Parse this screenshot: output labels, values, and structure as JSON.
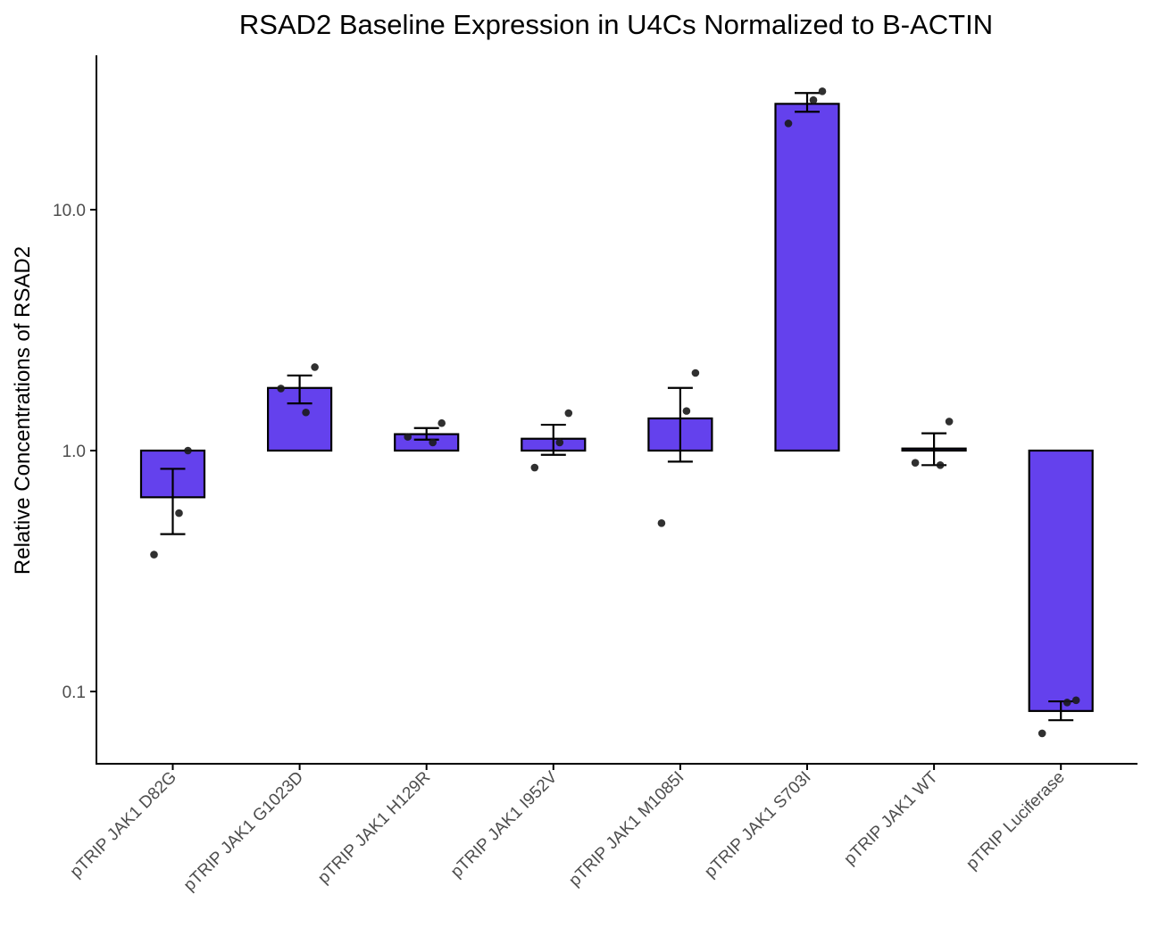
{
  "chart_data": {
    "type": "bar",
    "title": "RSAD2 Baseline Expression in U4Cs Normalized to B-ACTIN",
    "xlabel": "",
    "ylabel": "Relative Concentrations of RSAD2",
    "y_scale": "log10",
    "ylim": [
      0.05,
      35
    ],
    "bar_baseline": 1.0,
    "y_ticks": [
      0.1,
      1.0,
      10.0
    ],
    "y_tick_labels": [
      "0.1",
      "1.0",
      "10.0"
    ],
    "grid": false,
    "legend": "none",
    "bar_color": "#6441ED",
    "bar_edge_color": "#000000",
    "point_color": "#1a1a1a",
    "categories": [
      "pTRIP JAK1 D82G",
      "pTRIP JAK1 G1023D",
      "pTRIP JAK1 H129R",
      "pTRIP JAK1 I952V",
      "pTRIP JAK1 M1085I",
      "pTRIP JAK1 S703I",
      "pTRIP JAK1 WT",
      "pTRIP Luciferase"
    ],
    "values": [
      0.64,
      1.82,
      1.17,
      1.12,
      1.36,
      27.5,
      1.02,
      0.083
    ],
    "error_low": [
      0.45,
      1.57,
      1.11,
      0.96,
      0.9,
      25.5,
      0.87,
      0.076
    ],
    "error_high": [
      0.84,
      2.05,
      1.24,
      1.28,
      1.82,
      30.5,
      1.18,
      0.091
    ],
    "points": [
      [
        1.0,
        0.55,
        0.37
      ],
      [
        2.22,
        1.44,
        1.81
      ],
      [
        1.3,
        1.08,
        1.14
      ],
      [
        1.43,
        1.08,
        0.85
      ],
      [
        2.1,
        1.46,
        0.5
      ],
      [
        31.0,
        28.5,
        22.8
      ],
      [
        1.32,
        0.87,
        0.89
      ],
      [
        0.092,
        0.09,
        0.067
      ]
    ]
  }
}
